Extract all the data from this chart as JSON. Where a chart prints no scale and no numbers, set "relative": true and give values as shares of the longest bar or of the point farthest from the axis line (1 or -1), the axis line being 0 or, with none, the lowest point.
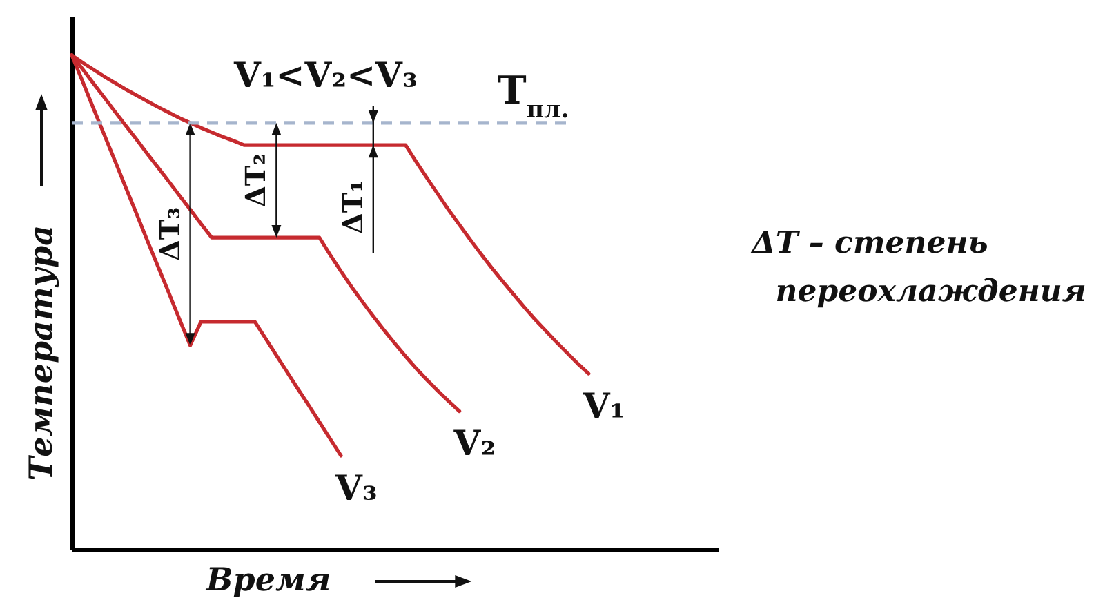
{
  "chart_data": {
    "type": "line",
    "relative": true,
    "xlabel": "Время",
    "ylabel": "Температура",
    "categories": [
      null,
      null,
      null,
      null,
      null,
      null,
      null,
      null,
      null,
      null,
      null,
      null,
      null,
      null,
      null,
      null,
      null,
      null,
      null,
      null,
      null,
      null,
      null,
      null,
      null,
      null,
      null,
      null,
      null,
      null,
      null,
      null,
      null,
      null,
      null,
      null,
      null,
      null,
      null,
      null,
      null,
      null,
      null,
      null,
      null,
      null,
      null,
      null,
      null,
      null,
      null,
      null,
      null,
      null,
      null,
      null,
      null,
      null,
      null,
      null,
      null
    ],
    "series": [
      {
        "name": "V₁",
        "color": "#c62a2f",
        "values": [
          1,
          0.985,
          0.971,
          0.957,
          0.944,
          0.931,
          0.919,
          0.907,
          0.895,
          0.884,
          0.873,
          0.863,
          0.853,
          0.844,
          0.835,
          0.827,
          0.818,
          0.818,
          0.818,
          0.818,
          0.818,
          0.818,
          0.818,
          0.818,
          0.818,
          0.818,
          0.818,
          0.818,
          0.818,
          0.818,
          0.818,
          0.818,
          0.784,
          0.751,
          0.719,
          0.687,
          0.657,
          0.627,
          0.598,
          0.57,
          0.543,
          0.517,
          0.491,
          0.466,
          0.443,
          0.42,
          0.398,
          0.376,
          0.356,
          null,
          null,
          null,
          null,
          null,
          null,
          null,
          null,
          null,
          null,
          null,
          null
        ]
      },
      {
        "name": "V₂",
        "color": "#c62a2f",
        "values": [
          1,
          0.972,
          0.943,
          0.915,
          0.886,
          0.858,
          0.83,
          0.801,
          0.773,
          0.745,
          0.716,
          0.688,
          0.659,
          0.631,
          0.631,
          0.631,
          0.631,
          0.631,
          0.631,
          0.631,
          0.631,
          0.631,
          0.631,
          0.631,
          0.596,
          0.563,
          0.531,
          0.501,
          0.472,
          0.444,
          0.417,
          0.391,
          0.366,
          0.343,
          0.321,
          0.3,
          0.28,
          null,
          null,
          null,
          null,
          null,
          null,
          null,
          null,
          null,
          null,
          null,
          null,
          null,
          null,
          null,
          null,
          null,
          null,
          null,
          null,
          null,
          null,
          null,
          null
        ]
      },
      {
        "name": "V₃",
        "color": "#c62a2f",
        "values": [
          1,
          0.947,
          0.893,
          0.84,
          0.787,
          0.733,
          0.68,
          0.626,
          0.573,
          0.52,
          0.466,
          0.413,
          0.461,
          0.461,
          0.461,
          0.461,
          0.461,
          0.461,
          0.427,
          0.393,
          0.359,
          0.325,
          0.292,
          0.258,
          0.224,
          0.19,
          null,
          null,
          null,
          null,
          null,
          null,
          null,
          null,
          null,
          null,
          null,
          null,
          null,
          null,
          null,
          null,
          null,
          null,
          null,
          null,
          null,
          null,
          null,
          null,
          null,
          null,
          null,
          null,
          null,
          null,
          null,
          null,
          null,
          null,
          null
        ]
      }
    ],
    "ref_lines": [
      {
        "axis": "y",
        "value": 0.863,
        "label": "T$_{пл.}$",
        "color": "#a6b5cd",
        "line_style": "dashed"
      }
    ],
    "annotations": [
      "V₁<V₂<V₃",
      "ΔT₁",
      "ΔT₂",
      "ΔT₃",
      "ΔT – степень переохлаждения"
    ]
  }
}
